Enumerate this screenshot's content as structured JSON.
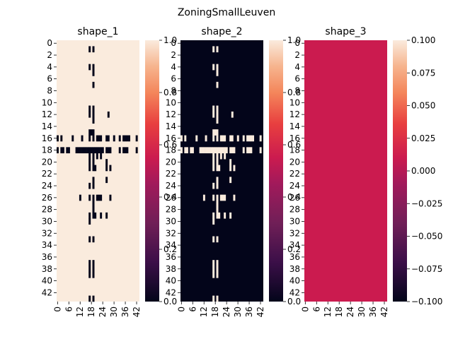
{
  "figure": {
    "title": "ZoningSmallLeuven"
  },
  "chart_data": [
    {
      "type": "heatmap",
      "title": "shape_1",
      "rows": 44,
      "cols": 44,
      "background_value": 1,
      "matrix_mark_value": 0,
      "marks": [
        [
          1,
          17
        ],
        [
          1,
          19
        ],
        [
          4,
          17
        ],
        [
          4,
          19
        ],
        [
          5,
          19
        ],
        [
          7,
          19
        ],
        [
          11,
          17
        ],
        [
          11,
          19
        ],
        [
          12,
          17
        ],
        [
          12,
          19
        ],
        [
          12,
          27
        ],
        [
          13,
          19
        ],
        [
          15,
          17
        ],
        [
          15,
          18
        ],
        [
          15,
          19
        ],
        [
          16,
          0
        ],
        [
          16,
          2
        ],
        [
          16,
          8
        ],
        [
          16,
          13
        ],
        [
          16,
          17
        ],
        [
          16,
          19
        ],
        [
          16,
          21
        ],
        [
          16,
          22
        ],
        [
          16,
          23
        ],
        [
          16,
          26
        ],
        [
          16,
          27
        ],
        [
          16,
          30
        ],
        [
          16,
          33
        ],
        [
          16,
          35
        ],
        [
          16,
          36
        ],
        [
          16,
          37
        ],
        [
          16,
          38
        ],
        [
          16,
          42
        ],
        [
          18,
          0
        ],
        [
          18,
          2
        ],
        [
          18,
          3
        ],
        [
          18,
          5
        ],
        [
          18,
          6
        ],
        [
          18,
          10
        ],
        [
          18,
          11
        ],
        [
          18,
          12
        ],
        [
          18,
          13
        ],
        [
          18,
          14
        ],
        [
          18,
          15
        ],
        [
          18,
          16
        ],
        [
          18,
          17
        ],
        [
          18,
          18
        ],
        [
          18,
          19
        ],
        [
          18,
          20
        ],
        [
          18,
          21
        ],
        [
          18,
          22
        ],
        [
          18,
          23
        ],
        [
          18,
          24
        ],
        [
          18,
          26
        ],
        [
          18,
          27
        ],
        [
          18,
          28
        ],
        [
          18,
          33
        ],
        [
          18,
          35
        ],
        [
          18,
          36
        ],
        [
          18,
          37
        ],
        [
          18,
          42
        ],
        [
          19,
          17
        ],
        [
          19,
          19
        ],
        [
          19,
          21
        ],
        [
          19,
          23
        ],
        [
          20,
          17
        ],
        [
          20,
          19
        ],
        [
          20,
          26
        ],
        [
          21,
          17
        ],
        [
          21,
          19
        ],
        [
          21,
          20
        ],
        [
          21,
          26
        ],
        [
          21,
          28
        ],
        [
          23,
          19
        ],
        [
          23,
          26
        ],
        [
          24,
          17
        ],
        [
          24,
          19
        ],
        [
          26,
          12
        ],
        [
          26,
          17
        ],
        [
          26,
          19
        ],
        [
          26,
          21
        ],
        [
          26,
          22
        ],
        [
          26,
          23
        ],
        [
          26,
          28
        ],
        [
          27,
          19
        ],
        [
          28,
          19
        ],
        [
          29,
          17
        ],
        [
          29,
          19
        ],
        [
          29,
          20
        ],
        [
          29,
          23
        ],
        [
          29,
          26
        ],
        [
          30,
          17
        ],
        [
          33,
          17
        ],
        [
          33,
          19
        ],
        [
          37,
          17
        ],
        [
          37,
          19
        ],
        [
          38,
          17
        ],
        [
          38,
          19
        ],
        [
          39,
          17
        ],
        [
          39,
          19
        ],
        [
          43,
          17
        ],
        [
          43,
          19
        ]
      ],
      "colors": {
        "low": "#03051a",
        "high": "#faebdd"
      },
      "colorbar": {
        "min": 0.0,
        "max": 1.0,
        "ticks": [
          "0.0",
          "0.2",
          "0.4",
          "0.6",
          "0.8",
          "1.0"
        ]
      },
      "yticks": [
        "0",
        "2",
        "4",
        "6",
        "8",
        "10",
        "12",
        "14",
        "16",
        "18",
        "20",
        "22",
        "24",
        "26",
        "28",
        "30",
        "32",
        "34",
        "36",
        "38",
        "40",
        "42"
      ],
      "xticks": [
        "0",
        "6",
        "12",
        "18",
        "24",
        "30",
        "36",
        "42"
      ]
    },
    {
      "type": "heatmap",
      "title": "shape_2",
      "rows": 44,
      "cols": 44,
      "background_value": 0,
      "matrix_mark_value": 1,
      "marks": [
        [
          1,
          17
        ],
        [
          1,
          19
        ],
        [
          4,
          17
        ],
        [
          4,
          19
        ],
        [
          5,
          19
        ],
        [
          7,
          19
        ],
        [
          11,
          17
        ],
        [
          11,
          19
        ],
        [
          12,
          17
        ],
        [
          12,
          19
        ],
        [
          12,
          27
        ],
        [
          13,
          19
        ],
        [
          15,
          17
        ],
        [
          15,
          18
        ],
        [
          15,
          19
        ],
        [
          16,
          0
        ],
        [
          16,
          2
        ],
        [
          16,
          8
        ],
        [
          16,
          13
        ],
        [
          16,
          17
        ],
        [
          16,
          19
        ],
        [
          16,
          21
        ],
        [
          16,
          22
        ],
        [
          16,
          23
        ],
        [
          16,
          26
        ],
        [
          16,
          27
        ],
        [
          16,
          30
        ],
        [
          16,
          33
        ],
        [
          16,
          35
        ],
        [
          16,
          36
        ],
        [
          16,
          37
        ],
        [
          16,
          38
        ],
        [
          16,
          42
        ],
        [
          18,
          0
        ],
        [
          18,
          2
        ],
        [
          18,
          3
        ],
        [
          18,
          5
        ],
        [
          18,
          6
        ],
        [
          18,
          10
        ],
        [
          18,
          11
        ],
        [
          18,
          12
        ],
        [
          18,
          13
        ],
        [
          18,
          14
        ],
        [
          18,
          15
        ],
        [
          18,
          16
        ],
        [
          18,
          17
        ],
        [
          18,
          18
        ],
        [
          18,
          19
        ],
        [
          18,
          20
        ],
        [
          18,
          21
        ],
        [
          18,
          22
        ],
        [
          18,
          23
        ],
        [
          18,
          24
        ],
        [
          18,
          26
        ],
        [
          18,
          27
        ],
        [
          18,
          28
        ],
        [
          18,
          33
        ],
        [
          18,
          35
        ],
        [
          18,
          36
        ],
        [
          18,
          37
        ],
        [
          18,
          42
        ],
        [
          19,
          17
        ],
        [
          19,
          19
        ],
        [
          19,
          21
        ],
        [
          19,
          23
        ],
        [
          20,
          17
        ],
        [
          20,
          19
        ],
        [
          20,
          26
        ],
        [
          21,
          17
        ],
        [
          21,
          19
        ],
        [
          21,
          20
        ],
        [
          21,
          26
        ],
        [
          21,
          28
        ],
        [
          23,
          19
        ],
        [
          23,
          26
        ],
        [
          24,
          17
        ],
        [
          24,
          19
        ],
        [
          26,
          12
        ],
        [
          26,
          17
        ],
        [
          26,
          19
        ],
        [
          26,
          21
        ],
        [
          26,
          22
        ],
        [
          26,
          23
        ],
        [
          26,
          28
        ],
        [
          27,
          19
        ],
        [
          28,
          19
        ],
        [
          29,
          17
        ],
        [
          29,
          19
        ],
        [
          29,
          20
        ],
        [
          29,
          23
        ],
        [
          29,
          26
        ],
        [
          30,
          17
        ],
        [
          33,
          17
        ],
        [
          33,
          19
        ],
        [
          37,
          17
        ],
        [
          37,
          19
        ],
        [
          38,
          17
        ],
        [
          38,
          19
        ],
        [
          39,
          17
        ],
        [
          39,
          19
        ],
        [
          43,
          17
        ],
        [
          43,
          19
        ]
      ],
      "colors": {
        "low": "#03051a",
        "high": "#faebdd"
      },
      "colorbar": {
        "min": 0.0,
        "max": 1.0,
        "ticks": [
          "0.0",
          "0.2",
          "0.4",
          "0.6",
          "0.8",
          "1.0"
        ]
      },
      "yticks": [
        "0",
        "2",
        "4",
        "6",
        "8",
        "10",
        "12",
        "14",
        "16",
        "18",
        "20",
        "22",
        "24",
        "26",
        "28",
        "30",
        "32",
        "34",
        "36",
        "38",
        "40",
        "42"
      ],
      "xticks": [
        "0",
        "6",
        "12",
        "18",
        "24",
        "30",
        "36",
        "42"
      ]
    },
    {
      "type": "heatmap",
      "title": "shape_3",
      "rows": 44,
      "cols": 44,
      "background_value": 0,
      "marks": [],
      "fill_color": "#cb1b4f",
      "colors": {
        "low": "#03051a",
        "high": "#faebdd"
      },
      "colorbar": {
        "min": -0.1,
        "max": 0.1,
        "ticks": [
          "−0.100",
          "−0.075",
          "−0.050",
          "−0.025",
          "0.000",
          "0.025",
          "0.050",
          "0.075",
          "0.100"
        ]
      },
      "yticks": [
        "0",
        "2",
        "4",
        "6",
        "8",
        "10",
        "12",
        "14",
        "16",
        "18",
        "20",
        "22",
        "24",
        "26",
        "28",
        "30",
        "32",
        "34",
        "36",
        "38",
        "40",
        "42"
      ],
      "xticks": [
        "0",
        "6",
        "12",
        "18",
        "24",
        "30",
        "36",
        "42"
      ]
    }
  ]
}
